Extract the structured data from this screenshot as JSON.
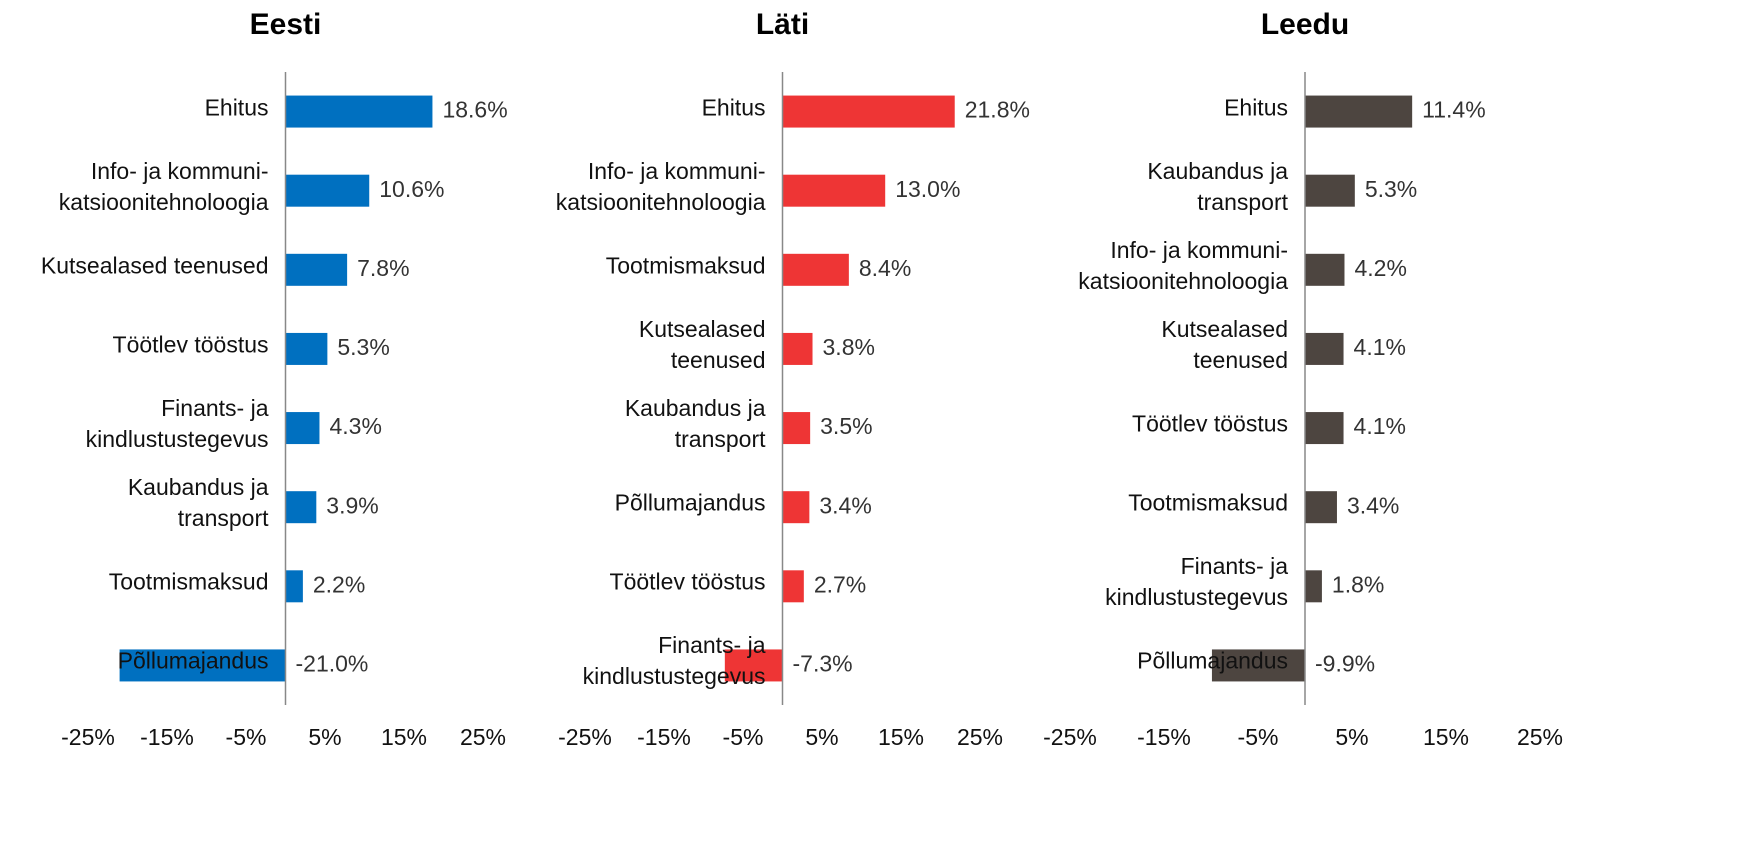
{
  "chart_data": [
    {
      "type": "barh",
      "title": "Eesti",
      "color": "#0070c0",
      "categories": [
        "Ehitus",
        "Info- ja kommuni-\nkatsioonitehnoloogia",
        "Kutsealased teenused",
        "Töötlev tööstus",
        "Finants- ja\nkindlustustegevus",
        "Kaubandus ja\ntransport",
        "Tootmismaksud",
        "Põllumajandus"
      ],
      "values": [
        18.6,
        10.6,
        7.8,
        5.3,
        4.3,
        3.9,
        2.2,
        -21.0
      ],
      "value_labels": [
        "18.6%",
        "10.6%",
        "7.8%",
        "5.3%",
        "4.3%",
        "3.9%",
        "2.2%",
        "-21.0%"
      ],
      "xlim": [
        -25,
        25
      ],
      "xticks": [
        {
          "value": -25,
          "label": "-25%"
        },
        {
          "value": -15,
          "label": "-15%"
        },
        {
          "value": -5,
          "label": "-5%"
        },
        {
          "value": 5,
          "label": "5%"
        },
        {
          "value": 15,
          "label": "15%"
        },
        {
          "value": 25,
          "label": "25%"
        }
      ]
    },
    {
      "type": "barh",
      "title": "Läti",
      "color": "#ee3535",
      "categories": [
        "Ehitus",
        "Info- ja kommuni-\nkatsioonitehnoloogia",
        "Tootmismaksud",
        "Kutsealased\nteenused",
        "Kaubandus ja\ntransport",
        "Põllumajandus",
        "Töötlev tööstus",
        "Finants- ja\nkindlustustegevus"
      ],
      "values": [
        21.8,
        13.0,
        8.4,
        3.8,
        3.5,
        3.4,
        2.7,
        -7.3
      ],
      "value_labels": [
        "21.8%",
        "13.0%",
        "8.4%",
        "3.8%",
        "3.5%",
        "3.4%",
        "2.7%",
        "-7.3%"
      ],
      "xlim": [
        -25,
        25
      ],
      "xticks": [
        {
          "value": -25,
          "label": "-25%"
        },
        {
          "value": -15,
          "label": "-15%"
        },
        {
          "value": -5,
          "label": "-5%"
        },
        {
          "value": 5,
          "label": "5%"
        },
        {
          "value": 15,
          "label": "15%"
        },
        {
          "value": 25,
          "label": "25%"
        }
      ]
    },
    {
      "type": "barh",
      "title": "Leedu",
      "color": "#4d4540",
      "categories": [
        "Ehitus",
        "Kaubandus ja\ntransport",
        "Info- ja kommuni-\nkatsioonitehnoloogia",
        "Kutsealased\nteenused",
        "Töötlev tööstus",
        "Tootmismaksud",
        "Finants- ja\nkindlustustegevus",
        "Põllumajandus"
      ],
      "values": [
        11.4,
        5.3,
        4.2,
        4.1,
        4.1,
        3.4,
        1.8,
        -9.9
      ],
      "value_labels": [
        "11.4%",
        "5.3%",
        "4.2%",
        "4.1%",
        "4.1%",
        "3.4%",
        "1.8%",
        "-9.9%"
      ],
      "xlim": [
        -25,
        25
      ],
      "xticks": [
        {
          "value": -25,
          "label": "-25%"
        },
        {
          "value": -15,
          "label": "-15%"
        },
        {
          "value": -5,
          "label": "-5%"
        },
        {
          "value": 5,
          "label": "5%"
        },
        {
          "value": 15,
          "label": "15%"
        },
        {
          "value": 25,
          "label": "25%"
        }
      ]
    }
  ]
}
